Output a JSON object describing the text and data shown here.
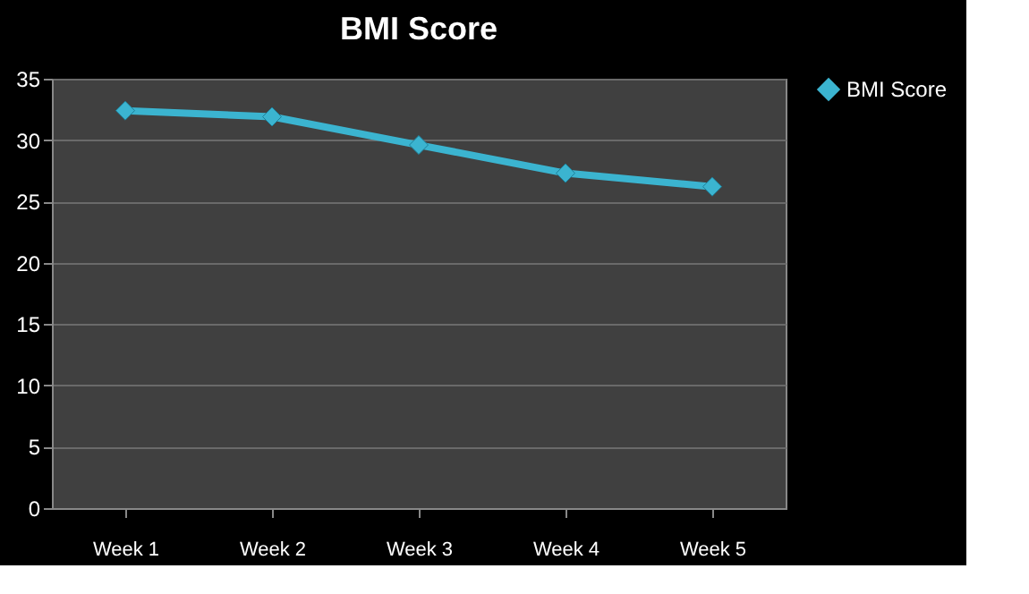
{
  "chart_data": {
    "type": "line",
    "title": "BMI Score",
    "categories": [
      "Week 1",
      "Week 2",
      "Week 3",
      "Week 4",
      "Week 5"
    ],
    "series": [
      {
        "name": "BMI Score",
        "color": "#3bb4d0",
        "values": [
          32.4,
          31.9,
          29.6,
          27.3,
          26.2
        ]
      }
    ],
    "ylim": [
      0,
      35
    ],
    "yticks": [
      0,
      5,
      10,
      15,
      20,
      25,
      30,
      35
    ],
    "grid": "y",
    "legend": "right",
    "marker": "diamond",
    "line_style": "solid"
  }
}
